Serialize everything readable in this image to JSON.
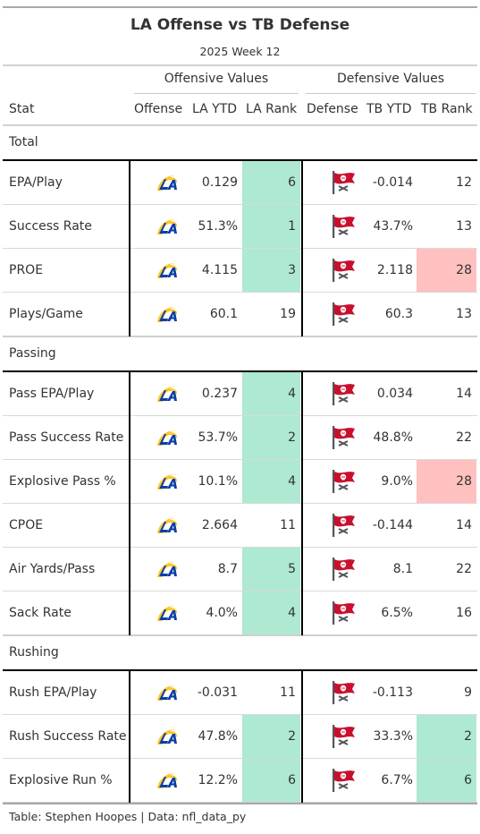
{
  "title": "LA Offense vs TB Defense",
  "subtitle": "2025 Week 12",
  "spanners": {
    "offense": "Offensive Values",
    "defense": "Defensive Values"
  },
  "columns": {
    "stat": "Stat",
    "offense": "Offense",
    "la_ytd": "LA YTD",
    "la_rank": "LA Rank",
    "defense": "Defense",
    "tb_ytd": "TB YTD",
    "tb_rank": "TB Rank"
  },
  "colors": {
    "good": "#aee9d1",
    "bad": "#ffc0c0",
    "rams_blue": "#0b3fa5",
    "rams_gold": "#ffc72c",
    "bucs_red": "#c8102e",
    "bucs_pewter": "#55565a"
  },
  "offense_logo": "rams-logo-icon",
  "defense_logo": "buccaneers-flag-icon",
  "groups": [
    {
      "name": "Total",
      "rows": [
        {
          "stat": "EPA/Play",
          "la_ytd": "0.129",
          "la_rank": "6",
          "la_hl": "good",
          "tb_ytd": "-0.014",
          "tb_rank": "12",
          "tb_hl": ""
        },
        {
          "stat": "Success Rate",
          "la_ytd": "51.3%",
          "la_rank": "1",
          "la_hl": "good",
          "tb_ytd": "43.7%",
          "tb_rank": "13",
          "tb_hl": ""
        },
        {
          "stat": "PROE",
          "la_ytd": "4.115",
          "la_rank": "3",
          "la_hl": "good",
          "tb_ytd": "2.118",
          "tb_rank": "28",
          "tb_hl": "bad"
        },
        {
          "stat": "Plays/Game",
          "la_ytd": "60.1",
          "la_rank": "19",
          "la_hl": "",
          "tb_ytd": "60.3",
          "tb_rank": "13",
          "tb_hl": ""
        }
      ]
    },
    {
      "name": "Passing",
      "rows": [
        {
          "stat": "Pass EPA/Play",
          "la_ytd": "0.237",
          "la_rank": "4",
          "la_hl": "good",
          "tb_ytd": "0.034",
          "tb_rank": "14",
          "tb_hl": ""
        },
        {
          "stat": "Pass Success Rate",
          "la_ytd": "53.7%",
          "la_rank": "2",
          "la_hl": "good",
          "tb_ytd": "48.8%",
          "tb_rank": "22",
          "tb_hl": ""
        },
        {
          "stat": "Explosive Pass %",
          "la_ytd": "10.1%",
          "la_rank": "4",
          "la_hl": "good",
          "tb_ytd": "9.0%",
          "tb_rank": "28",
          "tb_hl": "bad"
        },
        {
          "stat": "CPOE",
          "la_ytd": "2.664",
          "la_rank": "11",
          "la_hl": "",
          "tb_ytd": "-0.144",
          "tb_rank": "14",
          "tb_hl": ""
        },
        {
          "stat": "Air Yards/Pass",
          "la_ytd": "8.7",
          "la_rank": "5",
          "la_hl": "good",
          "tb_ytd": "8.1",
          "tb_rank": "22",
          "tb_hl": ""
        },
        {
          "stat": "Sack Rate",
          "la_ytd": "4.0%",
          "la_rank": "4",
          "la_hl": "good",
          "tb_ytd": "6.5%",
          "tb_rank": "16",
          "tb_hl": ""
        }
      ]
    },
    {
      "name": "Rushing",
      "rows": [
        {
          "stat": "Rush EPA/Play",
          "la_ytd": "-0.031",
          "la_rank": "11",
          "la_hl": "",
          "tb_ytd": "-0.113",
          "tb_rank": "9",
          "tb_hl": ""
        },
        {
          "stat": "Rush Success Rate",
          "la_ytd": "47.8%",
          "la_rank": "2",
          "la_hl": "good",
          "tb_ytd": "33.3%",
          "tb_rank": "2",
          "tb_hl": "good"
        },
        {
          "stat": "Explosive Run %",
          "la_ytd": "12.2%",
          "la_rank": "6",
          "la_hl": "good",
          "tb_ytd": "6.7%",
          "tb_rank": "6",
          "tb_hl": "good"
        }
      ]
    }
  ],
  "footer": "Table: Stephen Hoopes | Data: nfl_data_py"
}
